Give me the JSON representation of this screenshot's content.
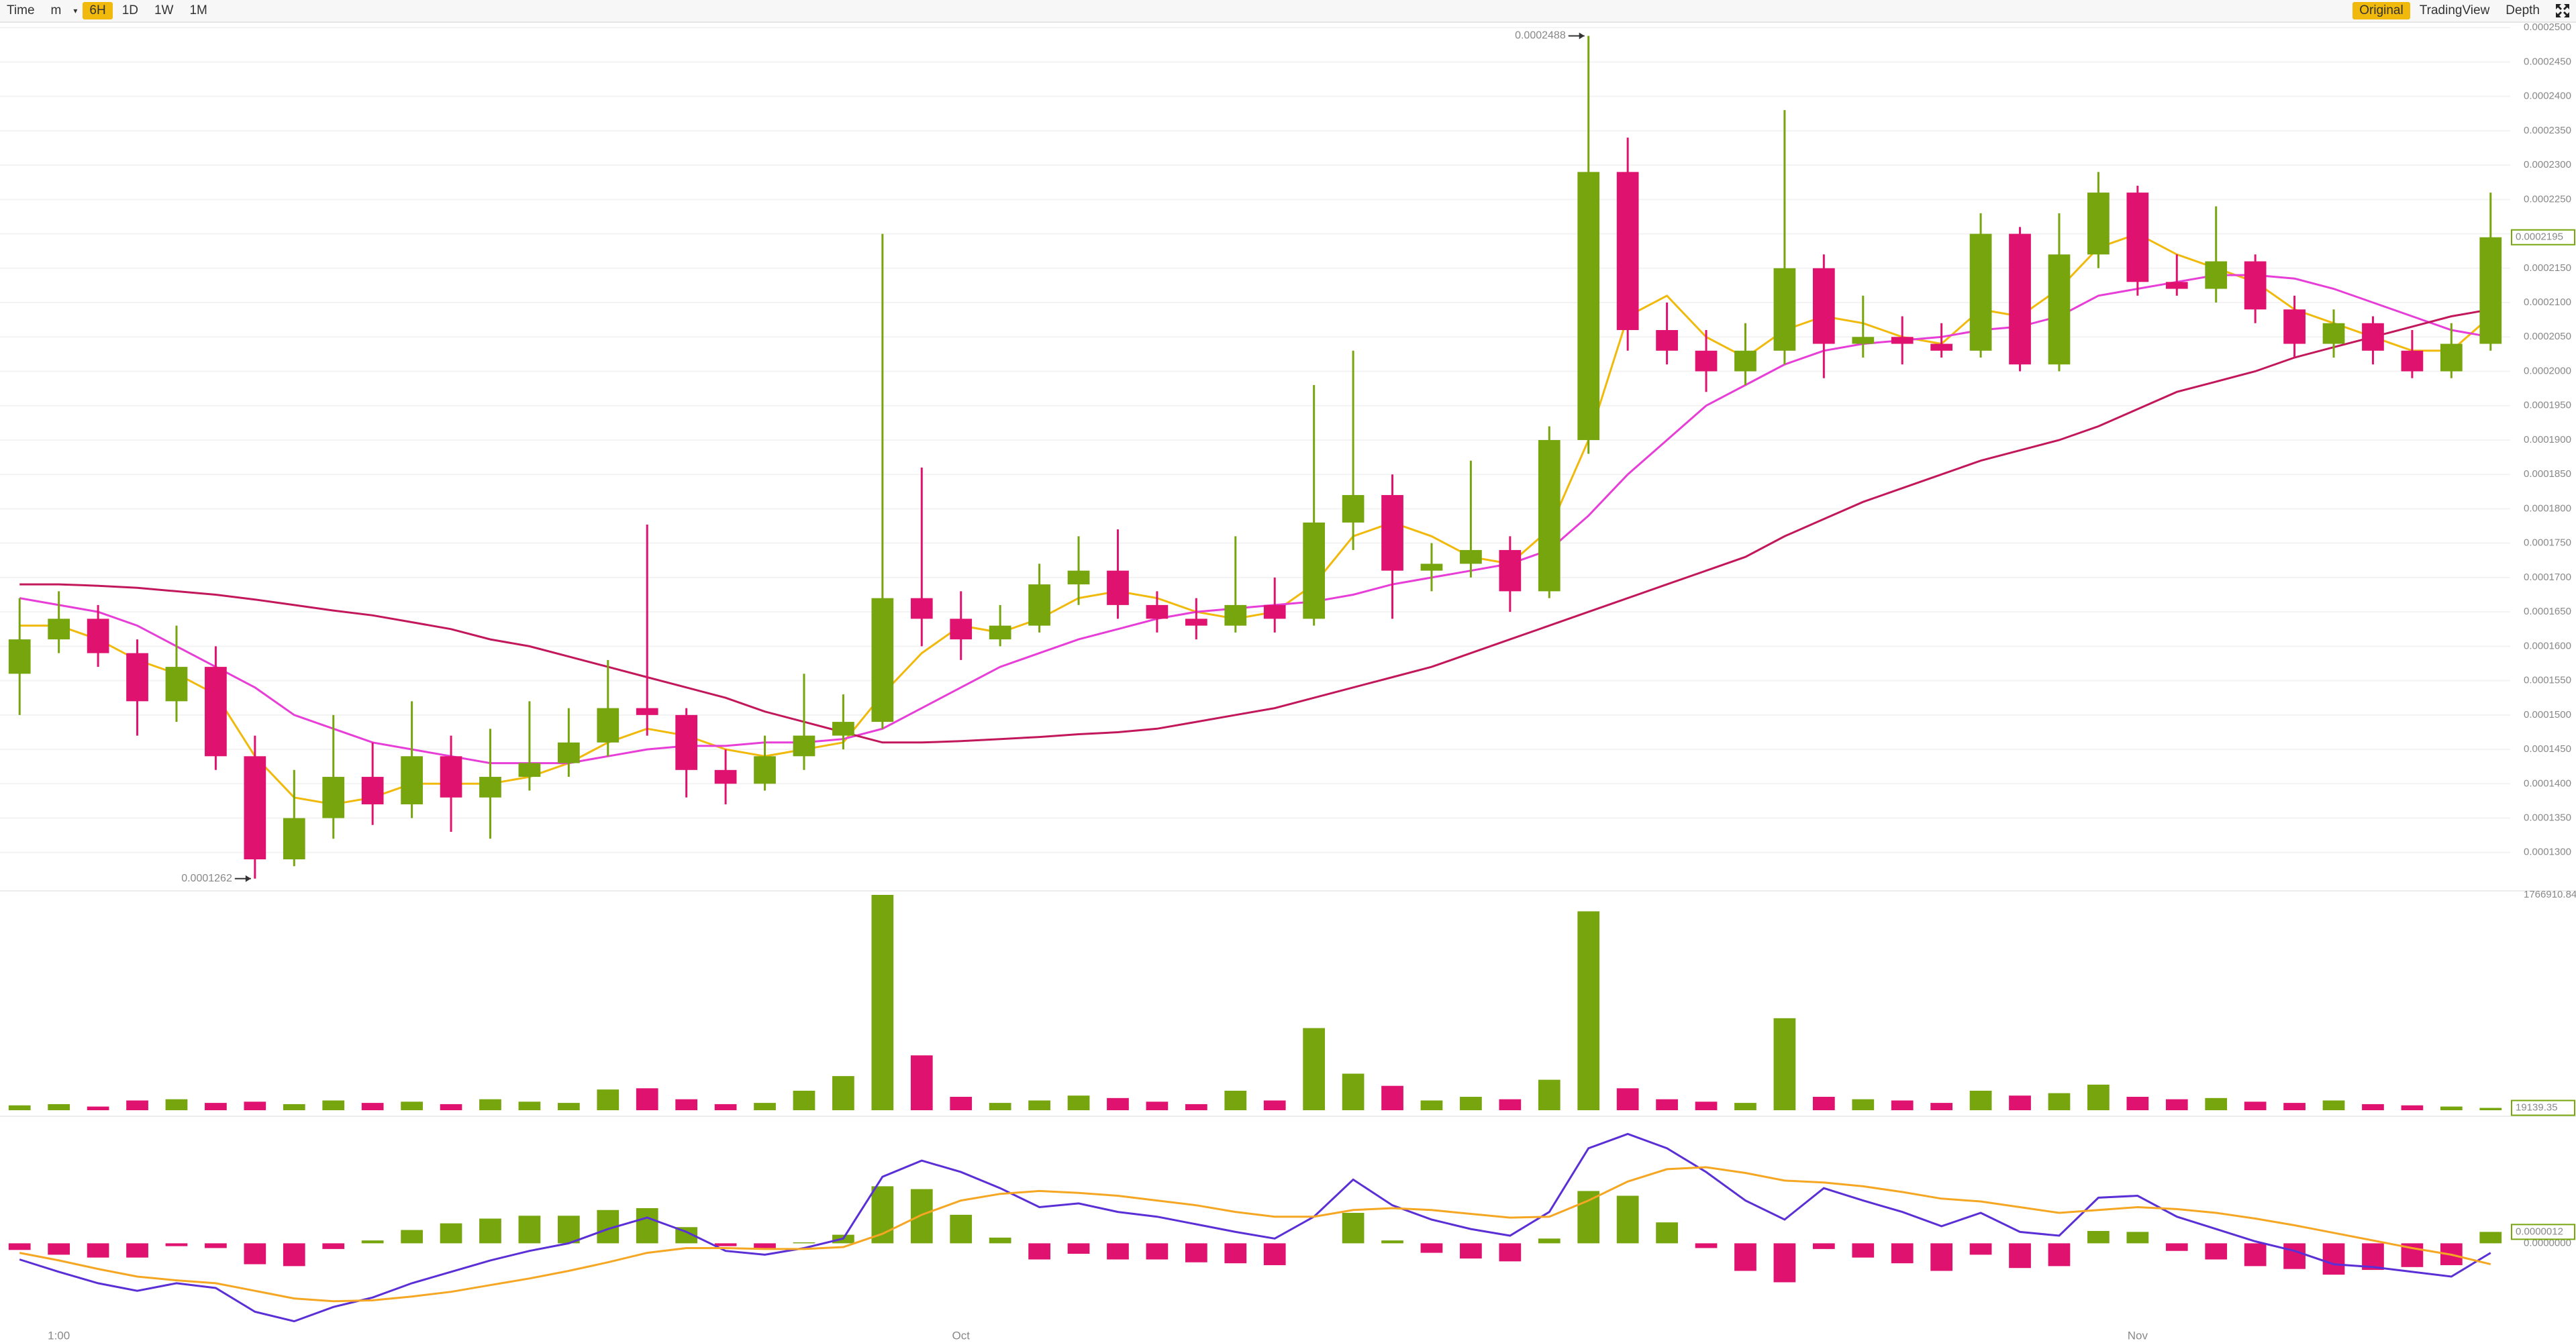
{
  "toolbar": {
    "left": [
      "Time",
      "m",
      "6H",
      "1D",
      "1W",
      "1M"
    ],
    "right": [
      "Original",
      "TradingView",
      "Depth"
    ]
  },
  "chart_data": [
    {
      "type": "candlestick",
      "up_color": "#76a50d",
      "down_color": "#e0126f",
      "grid": true,
      "categories": [
        null,
        "1:00",
        null,
        null,
        null,
        null,
        null,
        null,
        null,
        null,
        null,
        null,
        null,
        null,
        null,
        null,
        null,
        null,
        null,
        null,
        null,
        null,
        null,
        null,
        "Oct",
        null,
        null,
        null,
        null,
        null,
        null,
        null,
        null,
        null,
        null,
        null,
        null,
        null,
        null,
        null,
        null,
        null,
        null,
        null,
        null,
        null,
        null,
        null,
        null,
        null,
        null,
        null,
        null,
        null,
        "Nov",
        null,
        null,
        null,
        null,
        null,
        null,
        null,
        null,
        null
      ],
      "open": [
        0.000156,
        0.000161,
        0.000164,
        0.000159,
        0.000152,
        0.000157,
        0.000144,
        0.000129,
        0.000135,
        0.000141,
        0.000137,
        0.000144,
        0.000138,
        0.000141,
        0.000143,
        0.000146,
        0.000151,
        0.00015,
        0.000142,
        0.00014,
        0.000144,
        0.000147,
        0.000149,
        0.000167,
        0.000164,
        0.000161,
        0.000163,
        0.000169,
        0.000171,
        0.000166,
        0.000164,
        0.000163,
        0.000166,
        0.000164,
        0.000178,
        0.000182,
        0.000171,
        0.000172,
        0.000174,
        0.000168,
        0.00019,
        0.000229,
        0.000206,
        0.000203,
        0.0002,
        0.000203,
        0.000215,
        0.000204,
        0.000205,
        0.000204,
        0.000203,
        0.00022,
        0.000201,
        0.000217,
        0.000226,
        0.000213,
        0.000212,
        0.000216,
        0.000209,
        0.000204,
        0.000207,
        0.000203,
        0.0002,
        0.000204
      ],
      "high": [
        0.000167,
        0.000168,
        0.000166,
        0.000161,
        0.000163,
        0.00016,
        0.000147,
        0.000142,
        0.00015,
        0.000146,
        0.000152,
        0.000147,
        0.000148,
        0.000152,
        0.000151,
        0.000158,
        0.0001777,
        0.000151,
        0.000145,
        0.000147,
        0.000156,
        0.000153,
        0.00022,
        0.000186,
        0.000168,
        0.000166,
        0.000172,
        0.000176,
        0.000177,
        0.000168,
        0.000167,
        0.000176,
        0.00017,
        0.000198,
        0.000203,
        0.000185,
        0.000175,
        0.000187,
        0.000176,
        0.000192,
        0.0002488,
        0.000234,
        0.00021,
        0.000206,
        0.000207,
        0.000238,
        0.000217,
        0.000211,
        0.000208,
        0.000207,
        0.000223,
        0.000221,
        0.000223,
        0.000229,
        0.000227,
        0.000217,
        0.000224,
        0.000217,
        0.000211,
        0.000209,
        0.000208,
        0.000206,
        0.000207,
        0.000226
      ],
      "low": [
        0.00015,
        0.000159,
        0.000157,
        0.000147,
        0.000149,
        0.000142,
        0.0001262,
        0.000128,
        0.000132,
        0.000134,
        0.000135,
        0.000133,
        0.000132,
        0.000139,
        0.000141,
        0.000144,
        0.000147,
        0.000138,
        0.000137,
        0.000139,
        0.000142,
        0.000145,
        0.000148,
        0.00016,
        0.000158,
        0.00016,
        0.000162,
        0.000166,
        0.000164,
        0.000162,
        0.000161,
        0.000162,
        0.000162,
        0.000163,
        0.000174,
        0.000164,
        0.000168,
        0.00017,
        0.000165,
        0.000167,
        0.000188,
        0.000203,
        0.000201,
        0.000197,
        0.000198,
        0.000201,
        0.000199,
        0.000202,
        0.000201,
        0.000202,
        0.000202,
        0.0002,
        0.0002,
        0.000215,
        0.000211,
        0.000211,
        0.00021,
        0.000207,
        0.000202,
        0.000202,
        0.000201,
        0.000199,
        0.000199,
        0.000203
      ],
      "close": [
        0.000161,
        0.000164,
        0.000159,
        0.000152,
        0.000157,
        0.000144,
        0.000129,
        0.000135,
        0.000141,
        0.000137,
        0.000144,
        0.000138,
        0.000141,
        0.000143,
        0.000146,
        0.000151,
        0.00015,
        0.000142,
        0.00014,
        0.000144,
        0.000147,
        0.000149,
        0.000167,
        0.000164,
        0.000161,
        0.000163,
        0.000169,
        0.000171,
        0.000166,
        0.000164,
        0.000163,
        0.000166,
        0.000164,
        0.000178,
        0.000182,
        0.000171,
        0.000172,
        0.000174,
        0.000168,
        0.00019,
        0.000229,
        0.000206,
        0.000203,
        0.0002,
        0.000203,
        0.000215,
        0.000204,
        0.000205,
        0.000204,
        0.000203,
        0.00022,
        0.000201,
        0.000217,
        0.000226,
        0.000213,
        0.000212,
        0.000216,
        0.000209,
        0.000204,
        0.000207,
        0.000203,
        0.0002,
        0.000204,
        0.0002195
      ],
      "lines": [
        {
          "color": "#f0b90b",
          "values": [
            0.000163,
            0.000163,
            0.000161,
            0.000158,
            0.000156,
            0.000153,
            0.000144,
            0.000138,
            0.000137,
            0.000138,
            0.00014,
            0.00014,
            0.00014,
            0.000141,
            0.000143,
            0.000146,
            0.000148,
            0.000147,
            0.000145,
            0.000144,
            0.000145,
            0.000146,
            0.000153,
            0.000159,
            0.000163,
            0.000162,
            0.000164,
            0.000167,
            0.000168,
            0.000167,
            0.000165,
            0.000164,
            0.000165,
            0.000169,
            0.000176,
            0.000178,
            0.000176,
            0.000173,
            0.000172,
            0.000177,
            0.00019,
            0.000208,
            0.000211,
            0.000205,
            0.000202,
            0.000206,
            0.000208,
            0.000207,
            0.000205,
            0.000204,
            0.000209,
            0.000208,
            0.000212,
            0.000218,
            0.00022,
            0.000217,
            0.000215,
            0.000213,
            0.000209,
            0.000207,
            0.000205,
            0.000203,
            0.000203,
            0.000208
          ]
        },
        {
          "color": "#e83ed8",
          "values": [
            0.000167,
            0.000166,
            0.000165,
            0.000163,
            0.00016,
            0.000157,
            0.000154,
            0.00015,
            0.000148,
            0.000146,
            0.000145,
            0.000144,
            0.000143,
            0.000143,
            0.000143,
            0.000144,
            0.000145,
            0.0001455,
            0.0001455,
            0.000146,
            0.000146,
            0.0001465,
            0.000148,
            0.000151,
            0.000154,
            0.000157,
            0.000159,
            0.000161,
            0.0001625,
            0.000164,
            0.000165,
            0.0001655,
            0.000166,
            0.0001665,
            0.0001675,
            0.000169,
            0.00017,
            0.000171,
            0.000172,
            0.000174,
            0.000179,
            0.000185,
            0.00019,
            0.000195,
            0.000198,
            0.000201,
            0.000203,
            0.000204,
            0.0002045,
            0.000205,
            0.000206,
            0.0002065,
            0.000208,
            0.000211,
            0.000212,
            0.000213,
            0.000214,
            0.000214,
            0.0002135,
            0.000212,
            0.00021,
            0.000208,
            0.000206,
            0.000205
          ]
        },
        {
          "color": "#c2185b",
          "values": [
            0.000169,
            0.000169,
            0.0001688,
            0.0001685,
            0.000168,
            0.0001675,
            0.0001668,
            0.000166,
            0.0001652,
            0.0001645,
            0.0001635,
            0.0001625,
            0.000161,
            0.00016,
            0.0001585,
            0.000157,
            0.0001555,
            0.000154,
            0.0001525,
            0.0001505,
            0.000149,
            0.0001475,
            0.000146,
            0.000146,
            0.0001462,
            0.0001465,
            0.0001468,
            0.0001472,
            0.0001475,
            0.000148,
            0.000149,
            0.00015,
            0.000151,
            0.0001525,
            0.000154,
            0.0001555,
            0.000157,
            0.000159,
            0.000161,
            0.000163,
            0.000165,
            0.000167,
            0.000169,
            0.000171,
            0.000173,
            0.000176,
            0.0001785,
            0.000181,
            0.000183,
            0.000185,
            0.000187,
            0.0001885,
            0.00019,
            0.000192,
            0.0001945,
            0.000197,
            0.0001985,
            0.0002,
            0.000202,
            0.0002035,
            0.000205,
            0.0002065,
            0.000208,
            0.000209
          ]
        }
      ],
      "annotations": [
        {
          "label": "0.0002488",
          "value": 0.0002488
        },
        {
          "label": "0.0001262",
          "value": 0.0001262
        }
      ],
      "last_label": "0.0002195",
      "ylim": [
        0.000125,
        0.0002507
      ],
      "yticks": [
        {
          "value": 0.00013,
          "label": "0.0001300"
        },
        {
          "value": 0.000135,
          "label": "0.0001350"
        },
        {
          "value": 0.00014,
          "label": "0.0001400"
        },
        {
          "value": 0.000145,
          "label": "0.0001450"
        },
        {
          "value": 0.00015,
          "label": "0.0001500"
        },
        {
          "value": 0.000155,
          "label": "0.0001550"
        },
        {
          "value": 0.00016,
          "label": "0.0001600"
        },
        {
          "value": 0.000165,
          "label": "0.0001650"
        },
        {
          "value": 0.00017,
          "label": "0.0001700"
        },
        {
          "value": 0.000175,
          "label": "0.0001750"
        },
        {
          "value": 0.00018,
          "label": "0.0001800"
        },
        {
          "value": 0.000185,
          "label": "0.0001850"
        },
        {
          "value": 0.00019,
          "label": "0.0001900"
        },
        {
          "value": 0.000195,
          "label": "0.0001950"
        },
        {
          "value": 0.0002,
          "label": "0.0002000"
        },
        {
          "value": 0.000205,
          "label": "0.0002050"
        },
        {
          "value": 0.00021,
          "label": "0.0002100"
        },
        {
          "value": 0.000215,
          "label": "0.0002150"
        },
        {
          "value": 0.00022,
          "label": "0.0002200"
        },
        {
          "value": 0.000225,
          "label": "0.0002250"
        },
        {
          "value": 0.00023,
          "label": "0.0002300"
        },
        {
          "value": 0.000235,
          "label": "0.0002350"
        },
        {
          "value": 0.00024,
          "label": "0.0002400"
        },
        {
          "value": 0.000245,
          "label": "0.0002450"
        },
        {
          "value": 0.00025,
          "label": "0.0002500"
        }
      ]
    },
    {
      "type": "bar",
      "up_color": "#76a50d",
      "down_color": "#e0126f",
      "values": [
        40000,
        50000,
        30000,
        80000,
        90000,
        60000,
        70000,
        50000,
        80000,
        60000,
        70000,
        50000,
        90000,
        70000,
        60000,
        170000,
        180000,
        90000,
        50000,
        60000,
        160000,
        280000,
        1766910.84,
        450000,
        110000,
        60000,
        80000,
        120000,
        100000,
        70000,
        50000,
        160000,
        80000,
        674000,
        300000,
        200000,
        80000,
        110000,
        90000,
        250000,
        1632000,
        180000,
        90000,
        70000,
        60000,
        755000,
        110000,
        90000,
        80000,
        60000,
        160000,
        120000,
        140000,
        210000,
        110000,
        90000,
        100000,
        70000,
        60000,
        80000,
        50000,
        40000,
        30000,
        19139.35
      ],
      "last_label": "19139.35",
      "ylim": [
        0,
        1766910.84
      ],
      "yticks": [
        1766910.84
      ]
    },
    {
      "type": "macd",
      "up_color": "#76a50d",
      "down_color": "#e0126f",
      "histogram": [
        -7e-07,
        -1.2e-06,
        -1.5e-06,
        -1.5e-06,
        -3e-07,
        -5e-07,
        -2.2e-06,
        -2.4e-06,
        -6e-07,
        3e-07,
        1.4e-06,
        2.1e-06,
        2.6e-06,
        2.9e-06,
        2.9e-06,
        3.5e-06,
        3.7e-06,
        1.7e-06,
        -3e-07,
        -6e-07,
        1e-07,
        9e-07,
        6e-06,
        5.7e-06,
        3e-06,
        6e-07,
        -1.7e-06,
        -1.1e-06,
        -1.7e-06,
        -1.7e-06,
        -2e-06,
        -2.1e-06,
        -2.3e-06,
        0,
        3.2e-06,
        3e-07,
        -1e-06,
        -1.6e-06,
        -1.9e-06,
        5e-07,
        5.5e-06,
        5e-06,
        2.2e-06,
        -5e-07,
        -2.9e-06,
        -4.1e-06,
        -6e-07,
        -1.5e-06,
        -2.1e-06,
        -2.9e-06,
        -1.2e-06,
        -2.6e-06,
        -2.4e-06,
        1.3e-06,
        1.2e-06,
        -8e-07,
        -1.7e-06,
        -2.4e-06,
        -2.7e-06,
        -3.3e-06,
        -2.8e-06,
        -2.5e-06,
        -2.3e-06,
        1.2e-06
      ],
      "lines": [
        {
          "color": "#5b2fd6",
          "values": [
            -1.7e-06,
            -3e-06,
            -4.2e-06,
            -5e-06,
            -4.2e-06,
            -4.7e-06,
            -7.2e-06,
            -8.2e-06,
            -6.7e-06,
            -5.7e-06,
            -4.2e-06,
            -3e-06,
            -1.8e-06,
            -8e-07,
            0,
            1.5e-06,
            2.7e-06,
            1.2e-06,
            -8e-07,
            -1.2e-06,
            -5e-07,
            5e-07,
            7e-06,
            8.7e-06,
            7.5e-06,
            5.8e-06,
            3.8e-06,
            4.2e-06,
            3.3e-06,
            2.8e-06,
            2e-06,
            1.2e-06,
            5e-07,
            2.8e-06,
            6.7e-06,
            4e-06,
            2.5e-06,
            1.5e-06,
            8e-07,
            3.3e-06,
            1e-05,
            1.15e-05,
            1e-05,
            7.5e-06,
            4.5e-06,
            2.5e-06,
            5.8e-06,
            4.5e-06,
            3.3e-06,
            1.8e-06,
            3.2e-06,
            1.2e-06,
            8e-07,
            4.8e-06,
            5e-06,
            2.8e-06,
            1.5e-06,
            2e-07,
            -8e-07,
            -2.2e-06,
            -2.5e-06,
            -3e-06,
            -3.5e-06,
            -1e-06
          ]
        },
        {
          "color": "#f5a623",
          "values": [
            -1e-06,
            -1.8e-06,
            -2.7e-06,
            -3.5e-06,
            -3.9e-06,
            -4.2e-06,
            -5e-06,
            -5.8e-06,
            -6.1e-06,
            -6e-06,
            -5.6e-06,
            -5.1e-06,
            -4.4e-06,
            -3.7e-06,
            -2.9e-06,
            -2e-06,
            -1e-06,
            -5e-07,
            -5e-07,
            -6e-07,
            -6e-07,
            -4e-07,
            1e-06,
            3e-06,
            4.5e-06,
            5.2e-06,
            5.5e-06,
            5.3e-06,
            5e-06,
            4.5e-06,
            4e-06,
            3.3e-06,
            2.8e-06,
            2.8e-06,
            3.5e-06,
            3.7e-06,
            3.5e-06,
            3.1e-06,
            2.7e-06,
            2.8e-06,
            4.5e-06,
            6.5e-06,
            7.8e-06,
            8e-06,
            7.4e-06,
            6.6e-06,
            6.4e-06,
            6e-06,
            5.4e-06,
            4.7e-06,
            4.4e-06,
            3.8e-06,
            3.2e-06,
            3.5e-06,
            3.8e-06,
            3.6e-06,
            3.2e-06,
            2.6e-06,
            1.9e-06,
            1.1e-06,
            3e-07,
            -5e-07,
            -1.2e-06,
            -2.2e-06
          ]
        }
      ],
      "last_label": "0.0000012",
      "ylim": [
        -9.5e-06,
        1.28e-05
      ],
      "yticks": [
        {
          "value": 0,
          "label": "0.0000000"
        }
      ]
    }
  ]
}
